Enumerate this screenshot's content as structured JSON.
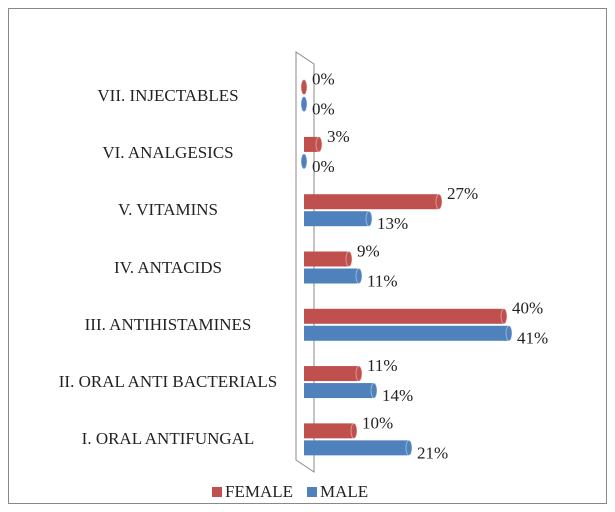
{
  "chart_data": {
    "type": "bar",
    "orientation": "horizontal",
    "categories": [
      "I.   ORAL  ANTIFUNGAL",
      "II. ORAL  ANTI BACTERIALS",
      "III. ANTIHISTAMINES",
      "IV. ANTACIDS",
      "V. VITAMINS",
      "VI. ANALGESICS",
      "VII. INJECTABLES"
    ],
    "series": [
      {
        "name": "FEMALE",
        "color": "#c0504d",
        "values": [
          10,
          11,
          40,
          9,
          27,
          3,
          0
        ],
        "value_labels": [
          "10%",
          "11%",
          "40%",
          "9%",
          "27%",
          "3%",
          "0%"
        ]
      },
      {
        "name": "MALE",
        "color": "#4f81bd",
        "values": [
          21,
          14,
          41,
          11,
          13,
          0,
          0
        ],
        "value_labels": [
          "21%",
          "14%",
          "41%",
          "11%",
          "13%",
          "0%",
          "0%"
        ]
      }
    ],
    "xlim": [
      0,
      45
    ],
    "legend": "bottom"
  }
}
